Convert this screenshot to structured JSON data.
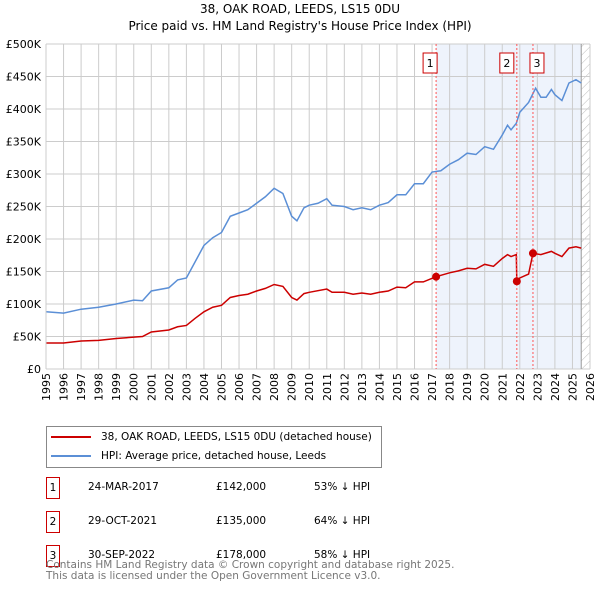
{
  "chart_data": {
    "type": "line",
    "title": "38, OAK ROAD, LEEDS, LS15 0DU",
    "subtitle": "Price paid vs. HM Land Registry's House Price Index (HPI)",
    "xlim": [
      1995,
      2026
    ],
    "ylim": [
      0,
      500000
    ],
    "x_ticks": [
      "1995",
      "1996",
      "1997",
      "1998",
      "1999",
      "2000",
      "2001",
      "2002",
      "2003",
      "2004",
      "2005",
      "2006",
      "2007",
      "2008",
      "2009",
      "2010",
      "2011",
      "2012",
      "2013",
      "2014",
      "2015",
      "2016",
      "2017",
      "2018",
      "2019",
      "2020",
      "2021",
      "2022",
      "2023",
      "2024",
      "2025",
      "2026"
    ],
    "y_ticks": [
      {
        "v": 0,
        "l": "£0"
      },
      {
        "v": 50000,
        "l": "£50K"
      },
      {
        "v": 100000,
        "l": "£100K"
      },
      {
        "v": 150000,
        "l": "£150K"
      },
      {
        "v": 200000,
        "l": "£200K"
      },
      {
        "v": 250000,
        "l": "£250K"
      },
      {
        "v": 300000,
        "l": "£300K"
      },
      {
        "v": 350000,
        "l": "£350K"
      },
      {
        "v": 400000,
        "l": "£400K"
      },
      {
        "v": 450000,
        "l": "£450K"
      },
      {
        "v": 500000,
        "l": "£500K"
      }
    ],
    "grid": true,
    "shaded_from": 2017.23,
    "hatched_from": 2025.5,
    "series": [
      {
        "name": "38, OAK ROAD, LEEDS, LS15 0DU (detached house)",
        "color": "#cc0000",
        "x": [
          1995,
          1996,
          1997,
          1998,
          1999,
          2000,
          2000.5,
          2001,
          2002,
          2002.5,
          2003,
          2003.5,
          2004,
          2004.5,
          2005,
          2005.5,
          2006,
          2006.5,
          2007,
          2007.5,
          2008,
          2008.5,
          2009,
          2009.3,
          2009.7,
          2010,
          2011,
          2011.3,
          2012,
          2012.5,
          2013,
          2013.5,
          2014,
          2014.5,
          2015,
          2015.5,
          2016,
          2016.5,
          2017.23,
          2018,
          2018.5,
          2019,
          2019.5,
          2020,
          2020.5,
          2021,
          2021.3,
          2021.5,
          2021.8,
          2021.83,
          2022,
          2022.5,
          2022.75,
          2023.2,
          2023.8,
          2024,
          2024.4,
          2024.8,
          2025.2,
          2025.5
        ],
        "y": [
          40,
          40,
          43,
          44,
          47,
          49,
          50,
          57,
          60,
          65,
          67,
          78,
          88,
          95,
          98,
          110,
          113,
          115,
          120,
          124,
          130,
          127,
          110,
          106,
          116,
          118,
          123,
          118,
          118,
          115,
          117,
          115,
          118,
          120,
          126,
          125,
          134,
          134,
          142,
          148,
          151,
          155,
          154,
          161,
          158,
          170,
          176,
          173,
          176,
          135,
          140,
          146,
          178,
          176,
          181,
          178,
          173,
          186,
          188,
          186
        ]
      },
      {
        "name": "HPI: Average price, detached house, Leeds",
        "color": "#5b8fd6",
        "x": [
          1995,
          1996,
          1997,
          1998,
          1999,
          2000,
          2000.5,
          2001,
          2002,
          2002.5,
          2003,
          2003.5,
          2004,
          2004.5,
          2005,
          2005.5,
          2006,
          2006.5,
          2007,
          2007.5,
          2008,
          2008.5,
          2009,
          2009.3,
          2009.7,
          2010,
          2010.5,
          2011,
          2011.3,
          2012,
          2012.5,
          2013,
          2013.5,
          2014,
          2014.5,
          2015,
          2015.5,
          2016,
          2016.5,
          2017,
          2017.5,
          2018,
          2018.5,
          2019,
          2019.5,
          2020,
          2020.5,
          2021,
          2021.3,
          2021.5,
          2021.8,
          2022,
          2022.5,
          2022.9,
          2023.2,
          2023.5,
          2023.8,
          2024,
          2024.4,
          2024.8,
          2025.2,
          2025.5
        ],
        "y": [
          88,
          86,
          92,
          95,
          100,
          106,
          105,
          120,
          125,
          137,
          140,
          165,
          190,
          202,
          210,
          235,
          240,
          245,
          255,
          265,
          278,
          270,
          235,
          228,
          248,
          252,
          255,
          262,
          252,
          250,
          245,
          248,
          245,
          252,
          256,
          268,
          268,
          285,
          285,
          303,
          305,
          315,
          322,
          332,
          330,
          342,
          338,
          360,
          375,
          368,
          378,
          395,
          410,
          432,
          418,
          418,
          430,
          422,
          413,
          440,
          445,
          440
        ],
        "y_unit": "£K"
      }
    ],
    "sales": [
      {
        "id": "1",
        "date": "24-MAR-2017",
        "x": 2017.23,
        "price": "£142,000",
        "value": 142000,
        "hpi": "53% ↓ HPI"
      },
      {
        "id": "2",
        "date": "29-OCT-2021",
        "x": 2021.83,
        "price": "£135,000",
        "value": 135000,
        "hpi": "64% ↓ HPI"
      },
      {
        "id": "3",
        "date": "30-SEP-2022",
        "x": 2022.75,
        "price": "£178,000",
        "value": 178000,
        "hpi": "58% ↓ HPI"
      }
    ]
  },
  "footer": {
    "line1": "Contains HM Land Registry data © Crown copyright and database right 2025.",
    "line2": "This data is licensed under the Open Government Licence v3.0."
  }
}
